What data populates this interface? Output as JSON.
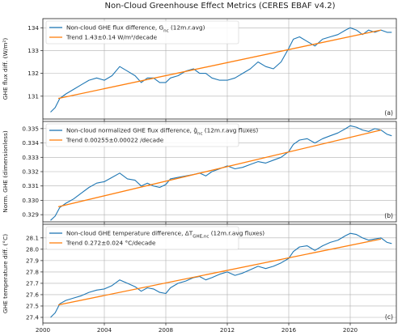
{
  "title": "Non-Cloud Greenhouse Effect Metrics  (CERES EBAF v4.2)",
  "colors": {
    "series": "#1f77b4",
    "trend": "#ff7f0e",
    "grid": "#b0b0b0",
    "axis": "#222222"
  },
  "chart_data": [
    {
      "type": "line",
      "panel_label": "(a)",
      "ylabel": "GHE flux diff. (W/m²)",
      "xlim": [
        2000,
        2023
      ],
      "ylim": [
        130.0,
        134.4
      ],
      "xticks": [
        2000,
        2004,
        2008,
        2012,
        2016,
        2020
      ],
      "xtick_labels": [
        "2000",
        "2004",
        "2008",
        "2012",
        "2016",
        "2020"
      ],
      "xtick_labels_visible": false,
      "yticks": [
        131,
        132,
        133,
        134
      ],
      "ytick_labels": [
        "131",
        "132",
        "133",
        "134"
      ],
      "grid": true,
      "legend_position": "top-left",
      "series": [
        {
          "name": "Non-cloud GHE flux difference, G_nc (12m.r.avg)",
          "x": [
            2000.5,
            2000.8,
            2001.1,
            2001.5,
            2002.0,
            2002.5,
            2003.0,
            2003.5,
            2004.0,
            2004.5,
            2005.0,
            2005.5,
            2006.0,
            2006.4,
            2006.8,
            2007.2,
            2007.6,
            2008.0,
            2008.3,
            2008.8,
            2009.3,
            2009.8,
            2010.2,
            2010.6,
            2011.0,
            2011.5,
            2012.0,
            2012.5,
            2013.0,
            2013.5,
            2014.0,
            2014.5,
            2015.0,
            2015.5,
            2016.0,
            2016.3,
            2016.7,
            2017.2,
            2017.7,
            2018.2,
            2018.7,
            2019.2,
            2019.7,
            2020.0,
            2020.4,
            2020.8,
            2021.2,
            2021.6,
            2022.0,
            2022.4,
            2022.7
          ],
          "y": [
            130.3,
            130.5,
            130.9,
            131.1,
            131.3,
            131.5,
            131.7,
            131.8,
            131.7,
            131.9,
            132.3,
            132.1,
            131.9,
            131.6,
            131.8,
            131.8,
            131.6,
            131.6,
            131.8,
            131.9,
            132.1,
            132.2,
            132.0,
            132.0,
            131.8,
            131.7,
            131.7,
            131.8,
            132.0,
            132.2,
            132.5,
            132.3,
            132.2,
            132.5,
            133.1,
            133.5,
            133.6,
            133.4,
            133.2,
            133.5,
            133.6,
            133.7,
            133.9,
            134.0,
            133.9,
            133.7,
            133.9,
            133.8,
            133.9,
            133.8,
            133.8
          ]
        },
        {
          "name": "Trend 1.43±0.14 W/m²/decade",
          "x": [
            2001.0,
            2022.0
          ],
          "y": [
            130.9,
            133.9
          ]
        }
      ]
    },
    {
      "type": "line",
      "panel_label": "(b)",
      "ylabel": "Norm. GHE (dimensionless)",
      "xlim": [
        2000,
        2023
      ],
      "ylim": [
        0.3285,
        0.3355
      ],
      "xticks": [
        2000,
        2004,
        2008,
        2012,
        2016,
        2020
      ],
      "xtick_labels": [
        "2000",
        "2004",
        "2008",
        "2012",
        "2016",
        "2020"
      ],
      "xtick_labels_visible": false,
      "yticks": [
        0.329,
        0.33,
        0.331,
        0.332,
        0.333,
        0.334,
        0.335
      ],
      "ytick_labels": [
        "0.329",
        "0.330",
        "0.331",
        "0.332",
        "0.333",
        "0.334",
        "0.335"
      ],
      "grid": true,
      "legend_position": "top-left",
      "series": [
        {
          "name": "Non-cloud normalized GHE flux difference, ĝ_nc (12m.r.avg fluxes)",
          "x": [
            2000.5,
            2000.8,
            2001.1,
            2001.5,
            2002.0,
            2002.5,
            2003.0,
            2003.5,
            2004.0,
            2004.5,
            2005.0,
            2005.5,
            2006.0,
            2006.4,
            2006.8,
            2007.2,
            2007.6,
            2008.0,
            2008.3,
            2008.8,
            2009.3,
            2009.8,
            2010.2,
            2010.6,
            2011.0,
            2011.5,
            2012.0,
            2012.5,
            2013.0,
            2013.5,
            2014.0,
            2014.5,
            2015.0,
            2015.5,
            2016.0,
            2016.3,
            2016.7,
            2017.2,
            2017.7,
            2018.2,
            2018.7,
            2019.2,
            2019.7,
            2020.0,
            2020.4,
            2020.8,
            2021.2,
            2021.6,
            2022.0,
            2022.4,
            2022.7
          ],
          "y": [
            0.3286,
            0.3289,
            0.3295,
            0.3298,
            0.3301,
            0.3305,
            0.3309,
            0.3312,
            0.3313,
            0.3316,
            0.3319,
            0.3315,
            0.3314,
            0.331,
            0.3312,
            0.331,
            0.3309,
            0.3311,
            0.3315,
            0.3316,
            0.3317,
            0.3318,
            0.3319,
            0.3317,
            0.332,
            0.3322,
            0.3324,
            0.3322,
            0.3323,
            0.3325,
            0.3327,
            0.3326,
            0.3328,
            0.333,
            0.3334,
            0.3339,
            0.3342,
            0.3343,
            0.334,
            0.3343,
            0.3345,
            0.3347,
            0.335,
            0.3352,
            0.3351,
            0.3349,
            0.3348,
            0.335,
            0.3349,
            0.3346,
            0.3345
          ]
        },
        {
          "name": "Trend 0.00255±0.00022 /decade",
          "x": [
            2001.0,
            2022.0
          ],
          "y": [
            0.32955,
            0.3349
          ]
        }
      ]
    },
    {
      "type": "line",
      "panel_label": "(c)",
      "ylabel": "GHE temperature diff. (°C)",
      "xlim": [
        2000,
        2023
      ],
      "ylim": [
        27.35,
        28.22
      ],
      "xticks": [
        2000,
        2004,
        2008,
        2012,
        2016,
        2020
      ],
      "xtick_labels": [
        "2000",
        "2004",
        "2008",
        "2012",
        "2016",
        "2020"
      ],
      "xtick_labels_visible": true,
      "yticks": [
        27.4,
        27.5,
        27.6,
        27.7,
        27.8,
        27.9,
        28.0,
        28.1
      ],
      "ytick_labels": [
        "27.4",
        "27.5",
        "27.6",
        "27.7",
        "27.8",
        "27.9",
        "28.0",
        "28.1"
      ],
      "grid": true,
      "legend_position": "top-left",
      "series": [
        {
          "name": "Non-cloud GHE temperature difference, ΔT_GHE,nc (12m.r.avg fluxes)",
          "x": [
            2000.5,
            2000.8,
            2001.1,
            2001.5,
            2002.0,
            2002.5,
            2003.0,
            2003.5,
            2004.0,
            2004.5,
            2005.0,
            2005.5,
            2006.0,
            2006.4,
            2006.8,
            2007.2,
            2007.6,
            2008.0,
            2008.3,
            2008.8,
            2009.3,
            2009.8,
            2010.2,
            2010.6,
            2011.0,
            2011.5,
            2012.0,
            2012.5,
            2013.0,
            2013.5,
            2014.0,
            2014.5,
            2015.0,
            2015.5,
            2016.0,
            2016.3,
            2016.7,
            2017.2,
            2017.7,
            2018.2,
            2018.7,
            2019.2,
            2019.7,
            2020.0,
            2020.4,
            2020.8,
            2021.2,
            2021.6,
            2022.0,
            2022.4,
            2022.7
          ],
          "y": [
            27.4,
            27.44,
            27.52,
            27.55,
            27.57,
            27.59,
            27.62,
            27.64,
            27.65,
            27.68,
            27.73,
            27.7,
            27.67,
            27.63,
            27.66,
            27.65,
            27.62,
            27.61,
            27.66,
            27.7,
            27.72,
            27.75,
            27.76,
            27.73,
            27.75,
            27.78,
            27.8,
            27.77,
            27.79,
            27.82,
            27.85,
            27.83,
            27.85,
            27.88,
            27.92,
            27.98,
            28.02,
            28.03,
            27.99,
            28.03,
            28.06,
            28.08,
            28.12,
            28.14,
            28.13,
            28.1,
            28.08,
            28.09,
            28.1,
            28.06,
            28.05
          ]
        },
        {
          "name": "Trend 0.272±0.024 °C/decade",
          "x": [
            2001.0,
            2022.0
          ],
          "y": [
            27.51,
            28.09
          ]
        }
      ]
    }
  ]
}
